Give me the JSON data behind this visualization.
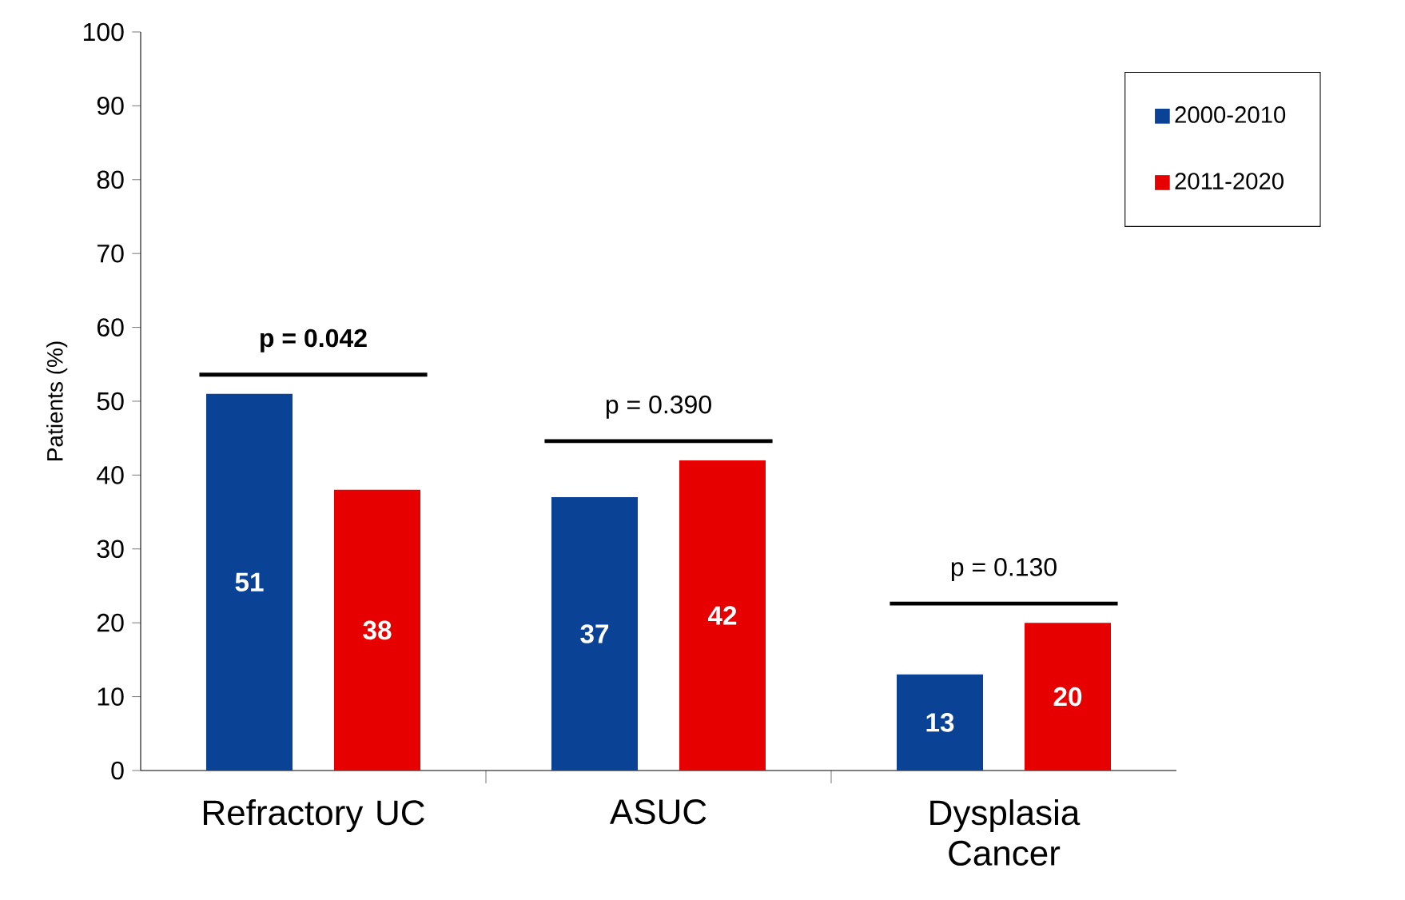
{
  "chart_data": {
    "type": "bar",
    "categories": [
      "Refractory UC",
      "ASUC",
      "Dysplasia Cancer"
    ],
    "series": [
      {
        "name": "2000-2010",
        "color": "#0a4395",
        "values": [
          51,
          37,
          13
        ]
      },
      {
        "name": "2011-2020",
        "color": "#e60000",
        "values": [
          38,
          42,
          20
        ]
      }
    ],
    "ylabel": "Patients (%)",
    "ylim": [
      0,
      100
    ],
    "yticks": [
      0,
      10,
      20,
      30,
      40,
      50,
      60,
      70,
      80,
      90,
      100
    ],
    "data_labels": true,
    "legend": "top right",
    "annotations": [
      "**p = 0.042**",
      "p = 0.390",
      "p = 0.130"
    ]
  }
}
